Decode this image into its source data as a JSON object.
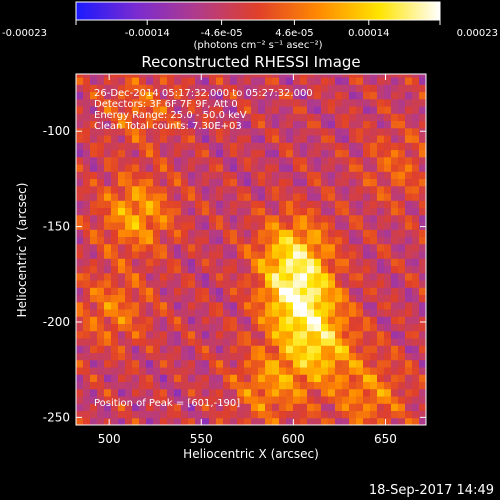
{
  "chart_data": {
    "type": "heatmap",
    "title": "Reconstructed RHESSI Image",
    "xlabel": "Heliocentric X (arcsec)",
    "ylabel": "Heliocentric Y (arcsec)",
    "xlim": [
      482,
      672
    ],
    "ylim": [
      -254,
      -70
    ],
    "x_ticks": [
      500,
      550,
      600,
      650
    ],
    "x_tick_labels": [
      "500",
      "550",
      "600",
      "650"
    ],
    "y_ticks": [
      -250,
      -200,
      -150,
      -100
    ],
    "y_tick_labels": [
      "-250",
      "-200",
      "-150",
      "-100"
    ],
    "colorbar": {
      "range": [
        -0.00023,
        0.00023
      ],
      "ticks": [
        -0.00023,
        -0.00014,
        -4.6e-05,
        4.6e-05,
        0.00014,
        0.00023
      ],
      "tick_labels": [
        "-0.00023",
        "-0.00014",
        "-4.6e-05",
        "4.6e-05",
        "0.00014",
        "0.00023"
      ],
      "unit_label": "(photons cm⁻² s⁻¹ asec⁻²)",
      "colormap": [
        "#1a1aff",
        "#7a2bd0",
        "#b13b8a",
        "#e0402a",
        "#ff8a00",
        "#ffe400",
        "#ffffff"
      ]
    },
    "annotations": [
      "26-Dec-2014 05:17:32.000 to 05:27:32.000",
      "Detectors: 3F 6F 7F 9F, Att 0",
      "Energy Range: 25.0 - 50.0 keV",
      "Clean     Total counts: 7.30E+03"
    ],
    "peak": {
      "x": 601,
      "y": -190,
      "label": "Position of Peak = [601,-190]"
    },
    "sources": [
      {
        "x": 601,
        "y": -190,
        "value": 0.00023
      },
      {
        "x": 598,
        "y": -165,
        "value": 0.00018
      },
      {
        "x": 612,
        "y": -215,
        "value": 0.00017
      },
      {
        "x": 585,
        "y": -235,
        "value": 0.00012
      },
      {
        "x": 513,
        "y": -145,
        "value": 0.00015
      },
      {
        "x": 500,
        "y": -195,
        "value": 0.0001
      },
      {
        "x": 640,
        "y": -240,
        "value": 0.00011
      },
      {
        "x": 515,
        "y": -90,
        "value": 8e-05
      },
      {
        "x": 655,
        "y": -120,
        "value": 7e-05
      }
    ]
  },
  "footer": {
    "timestamp": "18-Sep-2017 14:49"
  }
}
